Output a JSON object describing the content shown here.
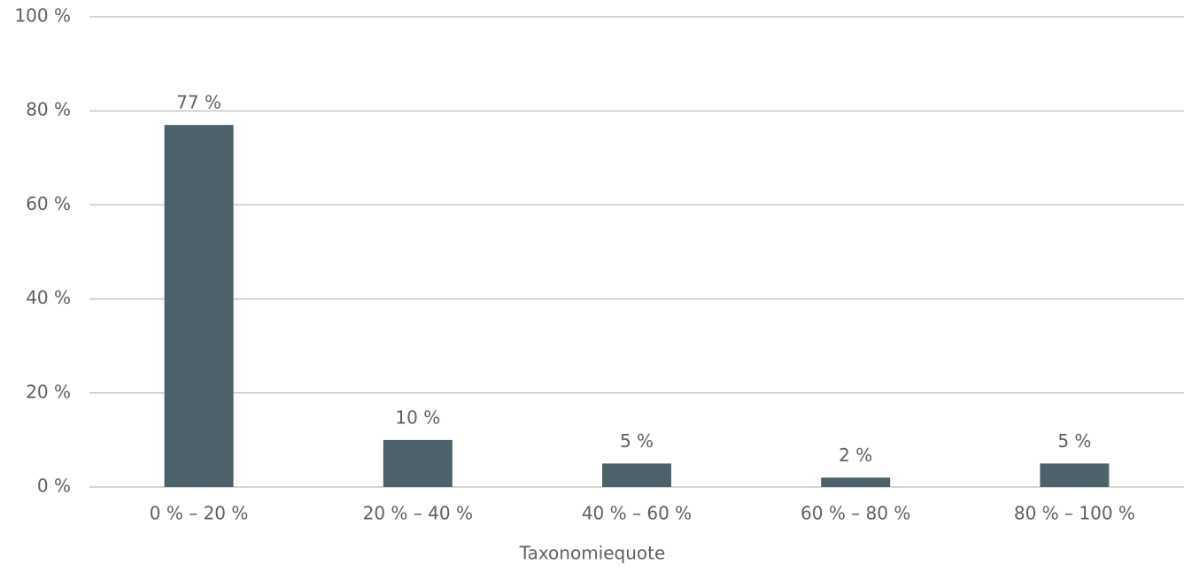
{
  "chart_data": {
    "type": "bar",
    "x_label": "Taxonomiequote",
    "categories": [
      "0 % – 20 %",
      "20 % – 40 %",
      "40 % – 60 %",
      "60 % – 80 %",
      "80 % – 100 %"
    ],
    "values": [
      77,
      10,
      5,
      2,
      5
    ],
    "value_labels": [
      "77 %",
      "10 %",
      "5 %",
      "2 %",
      "5 %"
    ],
    "color": "#4d616b",
    "ylim": [
      0,
      100
    ],
    "yticks": [
      {
        "value": 0,
        "label": "0 %"
      },
      {
        "value": 20,
        "label": "20 %"
      },
      {
        "value": 40,
        "label": "40 %"
      },
      {
        "value": 60,
        "label": "60 %"
      },
      {
        "value": 80,
        "label": "80 %"
      },
      {
        "value": 100,
        "label": "100 %"
      }
    ],
    "grid": true
  }
}
